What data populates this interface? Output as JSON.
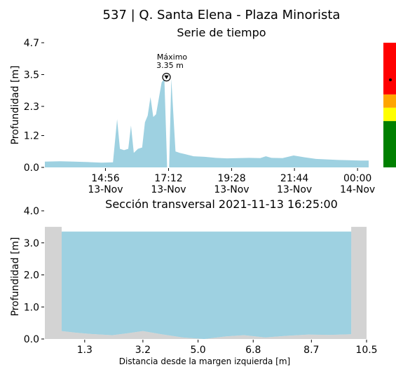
{
  "figure": {
    "title": "537 | Q. Santa Elena - Plaza Minorista"
  },
  "colors": {
    "water": "#9ed1e1",
    "ground": "#d3d3d3",
    "level_red": "#ff0000",
    "level_orange": "#ffa500",
    "level_yellow": "#ffff00",
    "level_green": "#008000"
  },
  "chart_data": [
    {
      "type": "area",
      "title": "Serie de tiempo",
      "xlabel": "",
      "ylabel": "Profundidad [m]",
      "ylim": [
        0,
        4.7
      ],
      "xlim": [
        12.75,
        24.4
      ],
      "yticks": [
        "0.0",
        "1.2",
        "2.3",
        "3.5",
        "4.7"
      ],
      "ytick_values": [
        0,
        1.2,
        2.3,
        3.5,
        4.7
      ],
      "xticks": [
        {
          "value": 14.93,
          "time": "14:56",
          "date": "13-Nov"
        },
        {
          "value": 17.2,
          "time": "17:12",
          "date": "13-Nov"
        },
        {
          "value": 19.47,
          "time": "19:28",
          "date": "13-Nov"
        },
        {
          "value": 21.73,
          "time": "21:44",
          "date": "13-Nov"
        },
        {
          "value": 24.0,
          "time": "00:00",
          "date": "14-Nov"
        }
      ],
      "series": [
        {
          "x": [
            12.75,
            13.3,
            13.8,
            14.3,
            14.8,
            15.2,
            15.35,
            15.45,
            15.6,
            15.75,
            15.85,
            15.95,
            16.1,
            16.25,
            16.35,
            16.45,
            16.55,
            16.65,
            16.75,
            16.85,
            16.95,
            17.05,
            17.15,
            17.22,
            17.3,
            17.45,
            17.6,
            17.8,
            18.1,
            18.5,
            18.9,
            19.3,
            19.7,
            20.1,
            20.5,
            20.7,
            20.9,
            21.3,
            21.7,
            22.1,
            22.5,
            22.9,
            23.3,
            23.7,
            24.1,
            24.4
          ],
          "y": [
            0.22,
            0.23,
            0.22,
            0.2,
            0.18,
            0.19,
            1.82,
            0.7,
            0.65,
            0.7,
            1.58,
            0.55,
            0.7,
            0.75,
            1.7,
            1.95,
            2.65,
            1.9,
            2.0,
            2.6,
            3.2,
            3.35,
            0.0,
            0.0,
            3.35,
            0.6,
            0.55,
            0.5,
            0.42,
            0.4,
            0.36,
            0.34,
            0.35,
            0.36,
            0.35,
            0.42,
            0.36,
            0.35,
            0.45,
            0.38,
            0.32,
            0.3,
            0.28,
            0.27,
            0.26,
            0.26
          ]
        }
      ],
      "annotations": [
        {
          "text": "Máximo",
          "value_text": "3.35 m",
          "x": 17.05,
          "y": 3.35
        }
      ],
      "level_bar": {
        "marker_value": 3.3,
        "bands": [
          {
            "from": 0,
            "to": 1.75,
            "color": "level_green"
          },
          {
            "from": 1.75,
            "to": 2.25,
            "color": "level_yellow"
          },
          {
            "from": 2.25,
            "to": 2.75,
            "color": "level_orange"
          },
          {
            "from": 2.75,
            "to": 4.7,
            "color": "level_red"
          }
        ]
      }
    },
    {
      "type": "area",
      "title": "Sección transversal 2021-11-13 16:25:00",
      "xlabel": "Distancia desde la margen izquierda [m]",
      "ylabel": "Profundidad [m]",
      "xlim": [
        0,
        10.5
      ],
      "ylim": [
        0,
        4.0
      ],
      "xticks": [
        "1.3",
        "3.2",
        "5.0",
        "6.8",
        "8.7",
        "10.5"
      ],
      "xtick_values": [
        1.3,
        3.2,
        5.0,
        6.8,
        8.7,
        10.5
      ],
      "yticks": [
        "0.0",
        "1.0",
        "2.0",
        "3.0",
        "4.0"
      ],
      "ytick_values": [
        0,
        1.0,
        2.0,
        3.0,
        4.0
      ],
      "water_level": 3.35,
      "bed_profile": {
        "x": [
          0.0,
          0.55,
          0.55,
          1.0,
          1.5,
          2.2,
          2.7,
          3.2,
          3.8,
          4.5,
          5.2,
          5.9,
          6.5,
          7.2,
          7.9,
          8.6,
          9.3,
          10.0,
          10.0,
          10.5
        ],
        "y": [
          3.5,
          3.5,
          0.25,
          0.2,
          0.16,
          0.12,
          0.18,
          0.25,
          0.15,
          0.05,
          0.0,
          0.08,
          0.12,
          0.05,
          0.1,
          0.14,
          0.13,
          0.15,
          3.5,
          3.5
        ]
      }
    }
  ]
}
